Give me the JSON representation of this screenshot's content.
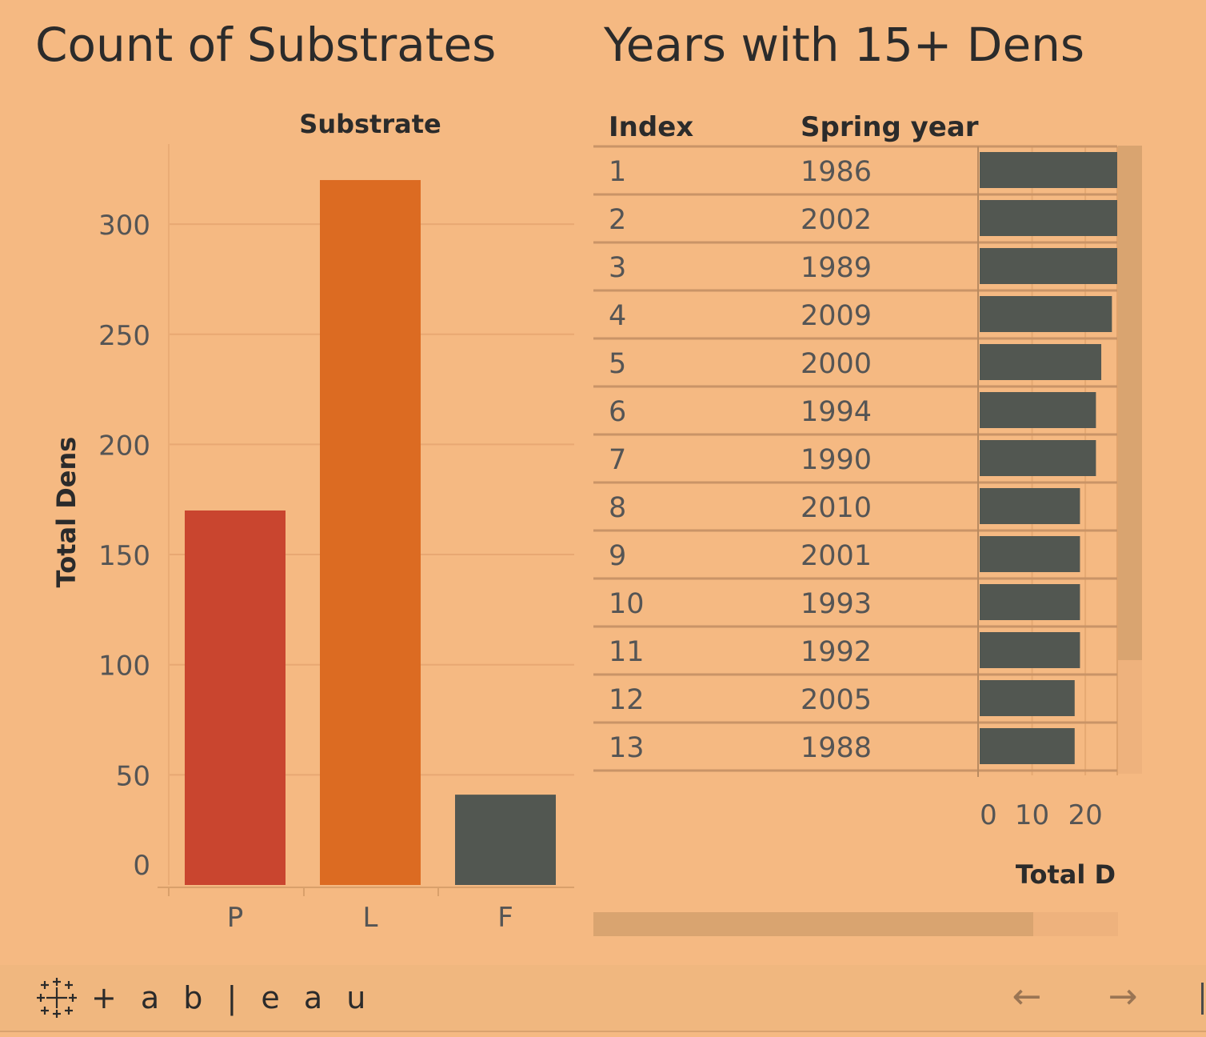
{
  "titles": {
    "left": "Count of Substrates",
    "right": "Years with 15+ Dens"
  },
  "footer": {
    "logo_text": "+ a b | e a u",
    "back_arrow": "←",
    "forward_arrow": "→",
    "logo_icon": "tableau-logo-icon"
  },
  "colors": {
    "background": "#f5b982",
    "bar_P": "#c9452f",
    "bar_L": "#dc6b22",
    "bar_F": "#525751",
    "table_bar": "#525751"
  },
  "chart_data": [
    {
      "type": "bar",
      "column_header": "Substrate",
      "ylabel": "Total Dens",
      "categories": [
        "P",
        "L",
        "F"
      ],
      "values": [
        170,
        320,
        41
      ],
      "yticks": [
        0,
        50,
        100,
        150,
        200,
        250,
        300
      ],
      "ylim": [
        0,
        335
      ],
      "grid": true
    },
    {
      "type": "table",
      "columns": [
        "Index",
        "Spring year"
      ],
      "axis_label": "Total D",
      "xticks": [
        0,
        10,
        20
      ],
      "xlim": [
        0,
        26
      ],
      "rows": [
        {
          "index": "1",
          "year": "1986",
          "value": 26
        },
        {
          "index": "2",
          "year": "2002",
          "value": 26
        },
        {
          "index": "3",
          "year": "1989",
          "value": 26
        },
        {
          "index": "4",
          "year": "2009",
          "value": 25
        },
        {
          "index": "5",
          "year": "2000",
          "value": 23
        },
        {
          "index": "6",
          "year": "1994",
          "value": 22
        },
        {
          "index": "7",
          "year": "1990",
          "value": 22
        },
        {
          "index": "8",
          "year": "2010",
          "value": 19
        },
        {
          "index": "9",
          "year": "2001",
          "value": 19
        },
        {
          "index": "10",
          "year": "1993",
          "value": 19
        },
        {
          "index": "11",
          "year": "1992",
          "value": 19
        },
        {
          "index": "12",
          "year": "2005",
          "value": 18
        },
        {
          "index": "13",
          "year": "1988",
          "value": 18
        }
      ]
    }
  ]
}
